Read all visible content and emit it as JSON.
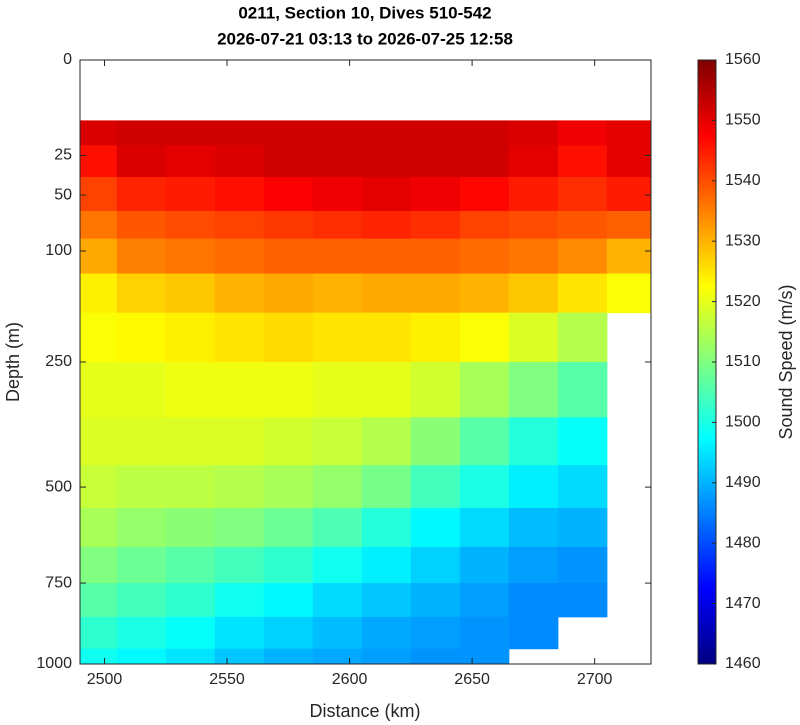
{
  "chart_data": {
    "type": "heatmap",
    "title": "0211, Section 10, Dives 510-542",
    "subtitle": "2026-07-21 03:13 to 2026-07-25 12:58",
    "x_label": "Distance (km)",
    "y_label": "Depth (m)",
    "colorbar_label": "Sound Speed (m/s)",
    "colormap": "jet",
    "y_scale": "sqrt",
    "y_reversed": true,
    "x": [
      2495,
      2515,
      2535,
      2555,
      2575,
      2595,
      2615,
      2635,
      2655,
      2675,
      2695,
      2715
    ],
    "depths": [
      15,
      25,
      50,
      75,
      100,
      150,
      200,
      300,
      400,
      500,
      600,
      700,
      800,
      900,
      1000
    ],
    "values": [
      [
        1551,
        1552,
        1552,
        1552,
        1552,
        1552,
        1552,
        1552,
        1552,
        1551,
        1549,
        1550
      ],
      [
        1546,
        1551,
        1550,
        1551,
        1552,
        1552,
        1552,
        1552,
        1552,
        1550,
        1546,
        1550
      ],
      [
        1541,
        1544,
        1545,
        1546,
        1548,
        1549,
        1550,
        1549,
        1547,
        1545,
        1543,
        1545
      ],
      [
        1536,
        1539,
        1540,
        1541,
        1542,
        1543,
        1544,
        1543,
        1541,
        1540,
        1539,
        1538
      ],
      [
        1531,
        1535,
        1536,
        1537,
        1538,
        1538,
        1538,
        1538,
        1537,
        1536,
        1534,
        1530
      ],
      [
        1524,
        1527,
        1528,
        1530,
        1531,
        1530,
        1531,
        1531,
        1530,
        1528,
        1525,
        1522
      ],
      [
        1522,
        1523,
        1524,
        1525,
        1526,
        1525,
        1525,
        1524,
        1522,
        1519,
        1515,
        null
      ],
      [
        1520,
        1520,
        1521,
        1521,
        1521,
        1520,
        1520,
        1518,
        1514,
        1510,
        1506,
        null
      ],
      [
        1519,
        1519,
        1519,
        1519,
        1518,
        1517,
        1515,
        1511,
        1506,
        1501,
        1498,
        null
      ],
      [
        1517,
        1516,
        1516,
        1515,
        1514,
        1512,
        1509,
        1504,
        1500,
        1496,
        1494,
        null
      ],
      [
        1514,
        1512,
        1511,
        1510,
        1508,
        1505,
        1501,
        1497,
        1494,
        1491,
        1490,
        null
      ],
      [
        1510,
        1508,
        1506,
        1504,
        1502,
        1499,
        1496,
        1493,
        1490,
        1488,
        1487,
        null
      ],
      [
        1506,
        1504,
        1502,
        1499,
        1497,
        1494,
        1492,
        1490,
        1488,
        1486,
        1486,
        null
      ],
      [
        1502,
        1500,
        1498,
        1495,
        1493,
        1491,
        1489,
        1488,
        1487,
        1486,
        null,
        null
      ],
      [
        1499,
        1497,
        1495,
        1492,
        1490,
        1489,
        1488,
        1487,
        1487,
        null,
        null,
        null
      ]
    ],
    "xlim": [
      2490,
      2723
    ],
    "xticks": [
      2500,
      2550,
      2600,
      2650,
      2700
    ],
    "ylim": [
      0,
      1000
    ],
    "yticks": [
      0,
      25,
      50,
      100,
      250,
      500,
      750,
      1000
    ],
    "clim": [
      1460,
      1560
    ],
    "cticks": [
      1460,
      1470,
      1480,
      1490,
      1500,
      1510,
      1520,
      1530,
      1540,
      1550,
      1560
    ]
  }
}
